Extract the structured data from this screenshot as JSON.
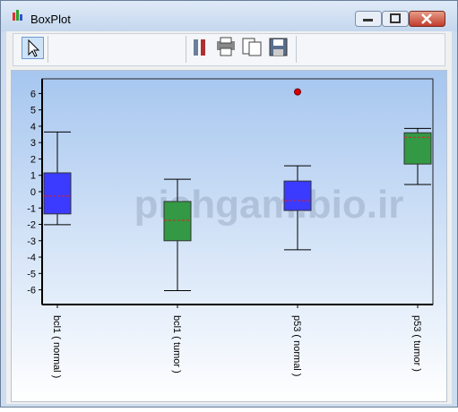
{
  "window": {
    "title": "BoxPlot"
  },
  "watermark": "pishgam.bio.ir",
  "chart_data": {
    "type": "box",
    "categories": [
      "bcl1 ( normal )",
      "bcl1 ( tumor )",
      "p53 ( normal )",
      "p53 ( tumor )"
    ],
    "boxes": [
      {
        "whisker_high": 3.65,
        "q3": 1.15,
        "median": -0.27,
        "q1": -1.36,
        "whisker_low": -2.02,
        "color": "#3b3bff",
        "outliers": []
      },
      {
        "whisker_high": 0.76,
        "q3": -0.6,
        "median": -1.75,
        "q1": -3.0,
        "whisker_low": -6.05,
        "color": "#339944",
        "outliers": []
      },
      {
        "whisker_high": 1.58,
        "q3": 0.65,
        "median": -0.55,
        "q1": -1.15,
        "whisker_low": -3.55,
        "color": "#3b3bff",
        "outliers": [
          6.1
        ]
      },
      {
        "whisker_high": 3.87,
        "q3": 3.6,
        "median": 3.33,
        "q1": 1.69,
        "whisker_low": 0.44,
        "color": "#339944",
        "outliers": []
      }
    ],
    "median_color": "#dd2222",
    "outlier_color": "#dd0000",
    "ylim": [
      -6.9,
      6.9
    ],
    "yticks": [
      -6,
      -5,
      -4,
      -3,
      -2,
      -1,
      0,
      1,
      2,
      3,
      4,
      5,
      6
    ]
  }
}
